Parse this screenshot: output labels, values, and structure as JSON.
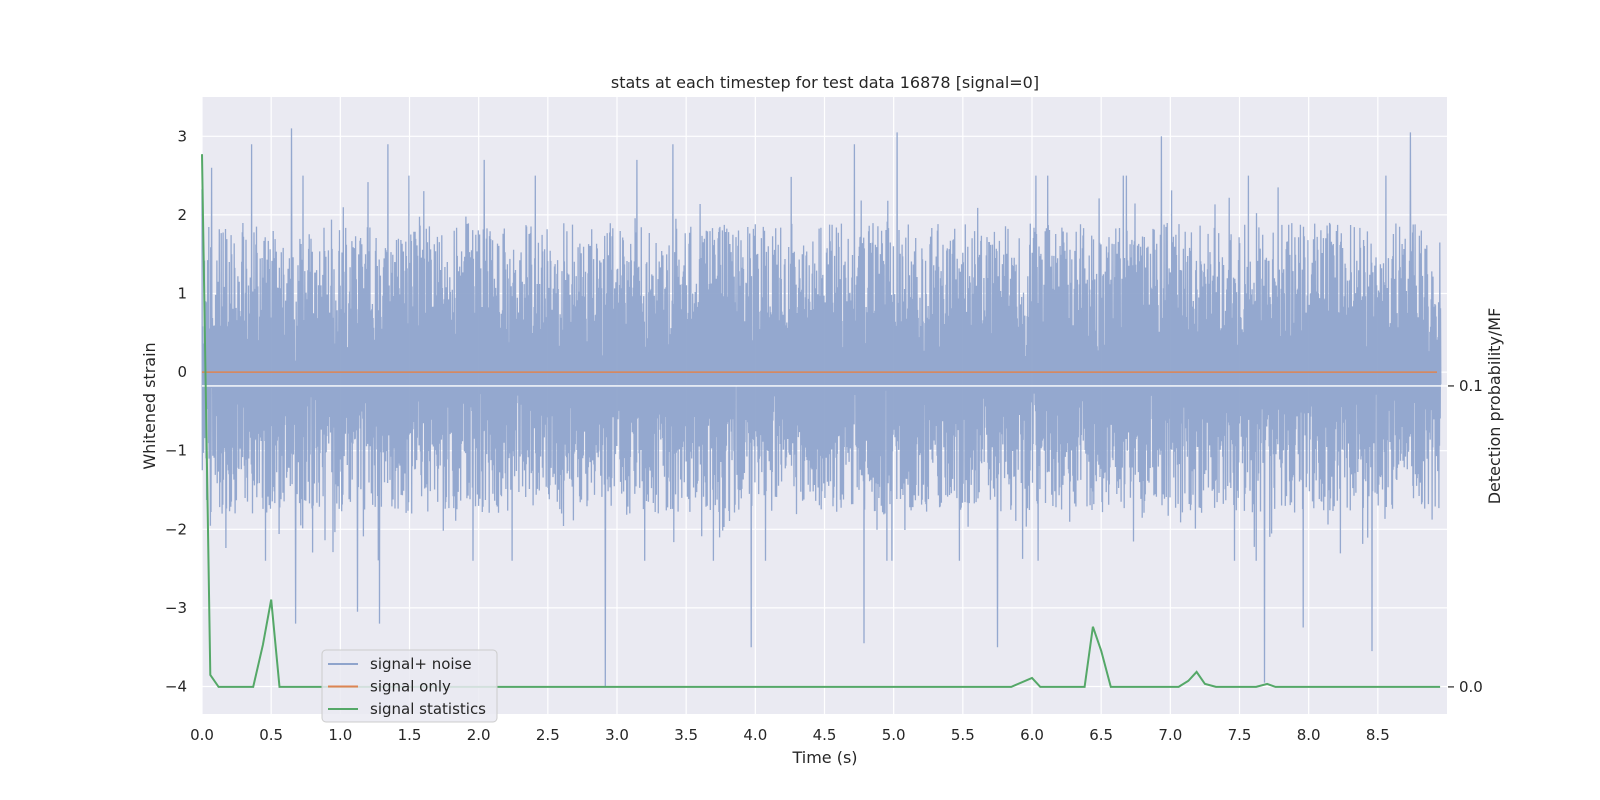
{
  "chart_data": {
    "type": "line",
    "title": "stats at each timestep for test data 16878 [signal=0]",
    "xlabel": "Time (s)",
    "ylabel": "Whitened strain",
    "y2label": "Detection probability/MF",
    "xlim": [
      0,
      9
    ],
    "ylim": [
      -4.35,
      3.5
    ],
    "y2lim": [
      -0.009,
      0.196
    ],
    "x_ticks": [
      0.0,
      0.5,
      1.0,
      1.5,
      2.0,
      2.5,
      3.0,
      3.5,
      4.0,
      4.5,
      5.0,
      5.5,
      6.0,
      6.5,
      7.0,
      7.5,
      8.0,
      8.5
    ],
    "x_tick_labels": [
      "0.0",
      "0.5",
      "1.0",
      "1.5",
      "2.0",
      "2.5",
      "3.0",
      "3.5",
      "4.0",
      "4.5",
      "5.0",
      "5.5",
      "6.0",
      "6.5",
      "7.0",
      "7.5",
      "8.0",
      "8.5"
    ],
    "y_ticks": [
      -4,
      -3,
      -2,
      -1,
      0,
      1,
      2,
      3
    ],
    "y_tick_labels": [
      "−4",
      "−3",
      "−2",
      "−1",
      "0",
      "1",
      "2",
      "3"
    ],
    "y2_ticks": [
      0.0,
      0.1
    ],
    "y2_tick_labels": [
      "0.0",
      "0.1"
    ],
    "grid": true,
    "legend_position": "lower-left",
    "series": [
      {
        "name": "signal+ noise",
        "axis": "left",
        "color": "#8fa4cc",
        "style": "dense noise",
        "typical_range": [
          -1.8,
          1.9
        ],
        "spikes": [
          [
            0.07,
            2.6
          ],
          [
            0.36,
            2.9
          ],
          [
            0.65,
            3.1
          ],
          [
            0.68,
            -3.2
          ],
          [
            1.13,
            -3.05
          ],
          [
            1.35,
            2.9
          ],
          [
            1.29,
            -3.2
          ],
          [
            2.05,
            2.7
          ],
          [
            2.93,
            -4.0
          ],
          [
            3.16,
            2.7
          ],
          [
            3.42,
            2.9
          ],
          [
            3.99,
            -3.5
          ],
          [
            4.74,
            2.9
          ],
          [
            4.81,
            -3.45
          ],
          [
            5.05,
            3.05
          ],
          [
            5.78,
            -3.5
          ],
          [
            6.97,
            3.0
          ],
          [
            7.72,
            -3.95
          ],
          [
            8.0,
            -3.25
          ],
          [
            8.5,
            -3.55
          ],
          [
            8.78,
            3.05
          ]
        ]
      },
      {
        "name": "signal only",
        "axis": "left",
        "color": "#dd8452",
        "x": [
          0,
          9
        ],
        "y": [
          0,
          0
        ]
      },
      {
        "name": "signal statistics",
        "axis": "right",
        "color": "#55a868",
        "x": [
          0.0,
          0.06,
          0.12,
          0.2,
          0.3,
          0.37,
          0.44,
          0.5,
          0.56,
          0.7,
          1.0,
          2.0,
          3.0,
          4.0,
          5.0,
          5.85,
          6.0,
          6.06,
          6.2,
          6.38,
          6.44,
          6.5,
          6.57,
          6.63,
          6.8,
          7.06,
          7.13,
          7.19,
          7.25,
          7.33,
          7.5,
          7.62,
          7.7,
          7.76,
          8.0,
          8.5,
          8.95
        ],
        "y": [
          0.177,
          0.004,
          0.0,
          0.0,
          0.0,
          0.0,
          0.014,
          0.029,
          0.0,
          0.0,
          0.0,
          0.0,
          0.0,
          0.0,
          0.0,
          0.0,
          0.003,
          0.0,
          0.0,
          0.0,
          0.02,
          0.012,
          0.0,
          0.0,
          0.0,
          0.0,
          0.002,
          0.005,
          0.001,
          0.0,
          0.0,
          0.0,
          0.001,
          0.0,
          0.0,
          0.0,
          0.0
        ]
      }
    ]
  }
}
